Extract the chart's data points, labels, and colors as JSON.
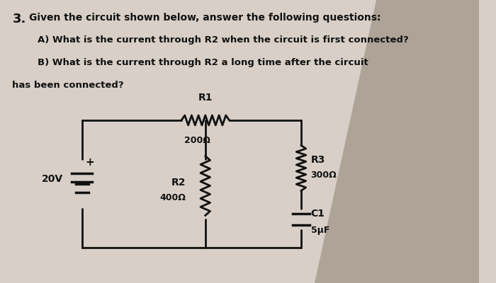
{
  "bg_color": "#d8d0c8",
  "text_color": "#1a1a1a",
  "title_line1": "Given the circuit shown below, answer the following questions:",
  "title_num": "3.",
  "question_a": "A) What is the current through R2 when the circuit is first connected?",
  "question_b1": "B) What is the current through R2 a long time after the circuit",
  "question_b2": "has been connected?",
  "voltage": "20V",
  "R1_label": "R1",
  "R1_val": "200Ω",
  "R2_label": "R2",
  "R2_val": "400Ω",
  "R3_label": "R3",
  "R3_val": "300Ω",
  "C1_label": "C1",
  "C1_val": "5μF",
  "line_color": "#111111",
  "shadow_color": "#8a8070"
}
